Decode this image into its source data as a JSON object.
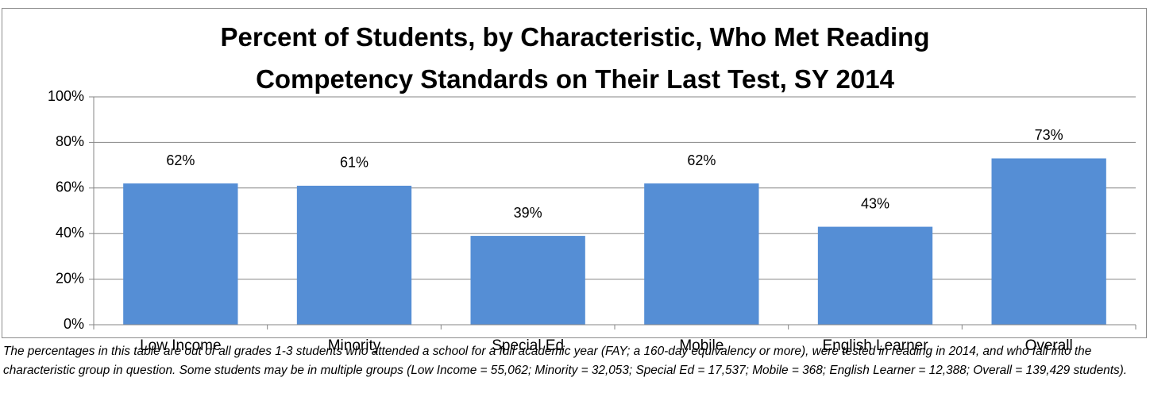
{
  "chart_data": {
    "type": "bar",
    "title": "Percent of Students, by Characteristic, Who Met Reading Competency Standards on Their Last Test, SY 2014",
    "categories": [
      "Low Income",
      "Minority",
      "Special Ed",
      "Mobile",
      "English Learner",
      "Overall"
    ],
    "values": [
      62,
      61,
      39,
      62,
      43,
      73
    ],
    "value_labels": [
      "62%",
      "61%",
      "39%",
      "62%",
      "43%",
      "73%"
    ],
    "color": "#558ed5",
    "ylim": [
      0,
      100
    ],
    "yticks": [
      {
        "value": 0,
        "label": "0%"
      },
      {
        "value": 20,
        "label": "20%"
      },
      {
        "value": 40,
        "label": "40%"
      },
      {
        "value": 60,
        "label": "60%"
      },
      {
        "value": 80,
        "label": "80%"
      },
      {
        "value": 100,
        "label": "100%"
      }
    ],
    "grid": true,
    "footnote": "The percentages in this table are out of all grades 1-3 students who attended a school for a full academic year (FAY; a 160-day equivalency or more), were tested in reading in 2014, and who fall into the characteristic group in question. Some students may be in multiple groups (Low Income = 55,062; Minority = 32,053; Special Ed = 17,537; Mobile =  368; English Learner = 12,388; Overall = 139,429 students)."
  }
}
